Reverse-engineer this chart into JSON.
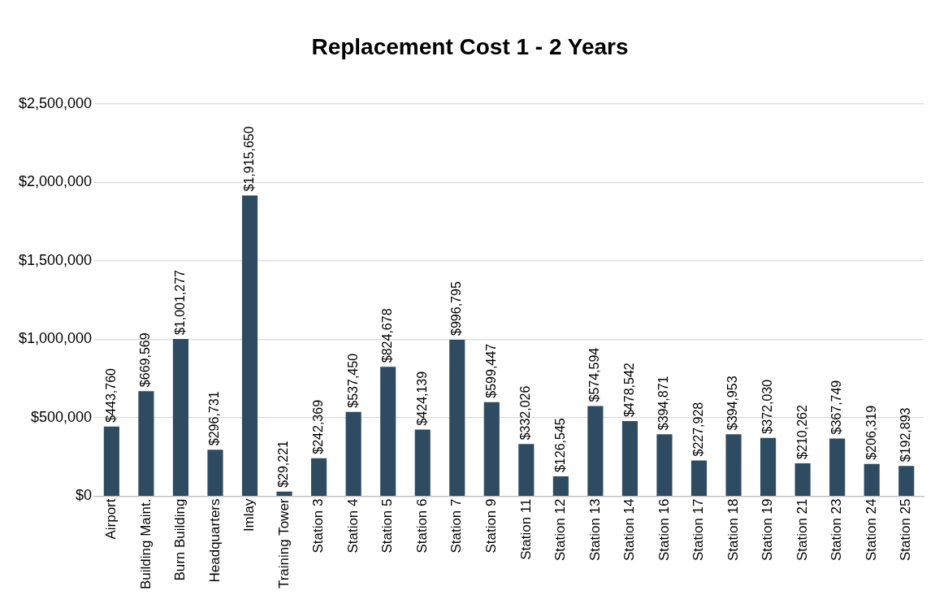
{
  "chart_data": {
    "type": "bar",
    "title": "Replacement Cost 1 - 2 Years",
    "categories": [
      "Airport",
      "Building Maint.",
      "Burn Building",
      "Headquarters",
      "Imlay",
      "Training Tower",
      "Station 3",
      "Station 4",
      "Station 5",
      "Station 6",
      "Station 7",
      "Station 9",
      "Station 11",
      "Station 12",
      "Station 13",
      "Station 14",
      "Station 16",
      "Station 17",
      "Station 18",
      "Station 19",
      "Station 21",
      "Station 23",
      "Station 24",
      "Station 25"
    ],
    "values": [
      443760,
      669569,
      1001277,
      296731,
      1915650,
      29221,
      242369,
      537450,
      824678,
      424139,
      996795,
      599447,
      332026,
      126545,
      574594,
      478542,
      394871,
      227928,
      394953,
      372030,
      210262,
      367749,
      206319,
      192893
    ],
    "value_labels": [
      "$443,760",
      "$669,569",
      "$1,001,277",
      "$296,731",
      "$1,915,650",
      "$29,221",
      "$242,369",
      "$537,450",
      "$824,678",
      "$424,139",
      "$996,795",
      "$599,447",
      "$332,026",
      "$126,545",
      "$574,594",
      "$478,542",
      "$394,871",
      "$227,928",
      "$394,953",
      "$372,030",
      "$210,262",
      "$367,749",
      "$206,319",
      "$192,893"
    ],
    "color": "#2f4b62",
    "ylim": [
      0,
      2500000
    ],
    "yticks": [
      {
        "value": 0,
        "label": "$0"
      },
      {
        "value": 500000,
        "label": "$500,000"
      },
      {
        "value": 1000000,
        "label": "$1,000,000"
      },
      {
        "value": 1500000,
        "label": "$1,500,000"
      },
      {
        "value": 2000000,
        "label": "$2,000,000"
      },
      {
        "value": 2500000,
        "label": "$2,500,000"
      }
    ],
    "grid": "y"
  }
}
